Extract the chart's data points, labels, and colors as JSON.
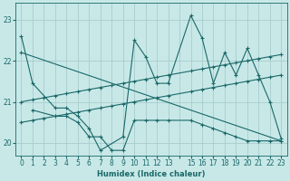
{
  "background_color": "#c8e8e8",
  "grid_color": "#a8cccc",
  "line_color": "#1a6868",
  "xlabel": "Humidex (Indice chaleur)",
  "ylim": [
    19.7,
    23.4
  ],
  "xlim": [
    -0.5,
    23.5
  ],
  "yticks": [
    20,
    21,
    22,
    23
  ],
  "xtick_labels": [
    "0",
    "1",
    "2",
    "3",
    "4",
    "5",
    "6",
    "7",
    "8",
    "9",
    "10",
    "11",
    "12",
    "13",
    "",
    "15",
    "16",
    "17",
    "18",
    "19",
    "20",
    "21",
    "22",
    "23"
  ],
  "xtick_positions": [
    0,
    1,
    2,
    3,
    4,
    5,
    6,
    7,
    8,
    9,
    10,
    11,
    12,
    13,
    14,
    15,
    16,
    17,
    18,
    19,
    20,
    21,
    22,
    23
  ],
  "series": [
    {
      "x": [
        0,
        1,
        2,
        3,
        4,
        5,
        6,
        7,
        8,
        9,
        10,
        11,
        12,
        13,
        15,
        16,
        17,
        18,
        19,
        20,
        21,
        22,
        23
      ],
      "y": [
        21.0,
        21.05,
        21.1,
        21.15,
        21.2,
        21.25,
        21.3,
        21.35,
        21.4,
        21.45,
        21.5,
        21.55,
        21.6,
        21.65,
        21.75,
        21.8,
        21.85,
        21.9,
        21.95,
        22.0,
        22.05,
        22.1,
        22.15
      ]
    },
    {
      "x": [
        0,
        1,
        2,
        3,
        4,
        5,
        6,
        7,
        8,
        9,
        10,
        11,
        12,
        13,
        15,
        16,
        17,
        18,
        19,
        20,
        21,
        22,
        23
      ],
      "y": [
        20.5,
        20.55,
        20.6,
        20.65,
        20.7,
        20.75,
        20.8,
        20.85,
        20.9,
        20.95,
        21.0,
        21.05,
        21.1,
        21.15,
        21.25,
        21.3,
        21.35,
        21.4,
        21.45,
        21.5,
        21.55,
        21.6,
        21.65
      ]
    },
    {
      "x": [
        0,
        23
      ],
      "y": [
        22.2,
        20.05
      ]
    },
    {
      "x": [
        0,
        1,
        3,
        4,
        5,
        6,
        7,
        9,
        10,
        11,
        12,
        13,
        15,
        16,
        17,
        18,
        19,
        20,
        21,
        22,
        23
      ],
      "y": [
        22.6,
        21.45,
        20.85,
        20.85,
        20.65,
        20.35,
        19.82,
        20.15,
        22.5,
        22.1,
        21.45,
        21.45,
        23.1,
        22.55,
        21.45,
        22.2,
        21.65,
        22.3,
        21.65,
        21.0,
        20.1
      ]
    },
    {
      "x": [
        1,
        3,
        4,
        5,
        6,
        7,
        8,
        9,
        10,
        11,
        12,
        13,
        15,
        16,
        17,
        18,
        19,
        20,
        21,
        22,
        23
      ],
      "y": [
        20.8,
        20.65,
        20.65,
        20.5,
        20.15,
        20.15,
        19.82,
        19.82,
        20.55,
        20.55,
        20.55,
        20.55,
        20.55,
        20.45,
        20.35,
        20.25,
        20.15,
        20.05,
        20.05,
        20.05,
        20.05
      ]
    }
  ]
}
